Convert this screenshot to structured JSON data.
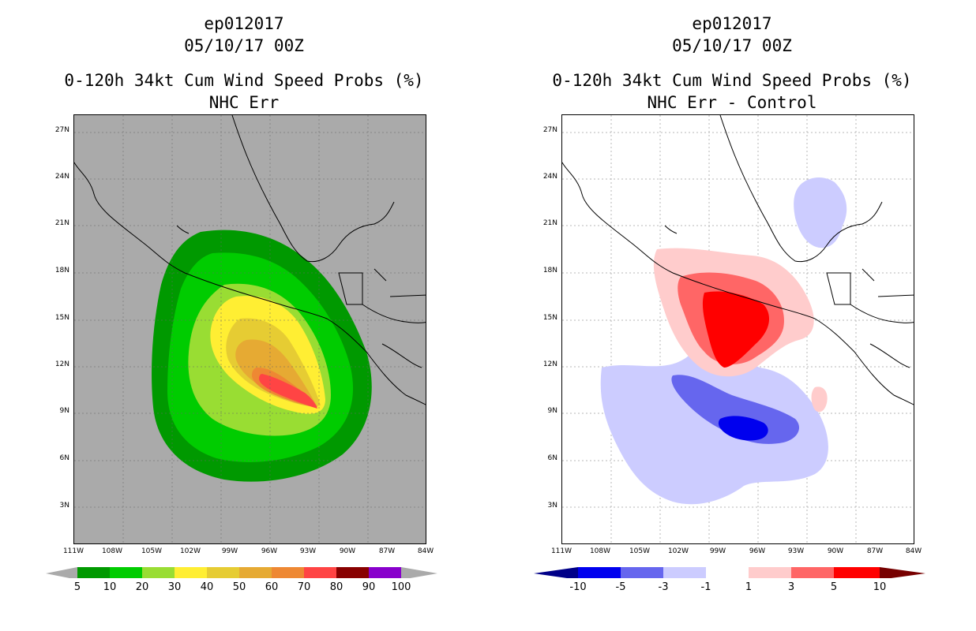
{
  "left_panel": {
    "title_line1": "ep012017",
    "title_line2": "05/10/17 00Z",
    "title_line3": "0-120h 34kt Cum Wind Speed Probs (%)",
    "title_line4": "NHC Err",
    "lat_labels": [
      "27N",
      "24N",
      "21N",
      "18N",
      "15N",
      "12N",
      "9N",
      "6N",
      "3N"
    ],
    "lon_labels": [
      "111W",
      "108W",
      "105W",
      "102W",
      "99W",
      "96W",
      "93W",
      "90W",
      "87W",
      "84W"
    ],
    "colorbar": {
      "labels": [
        "5",
        "10",
        "20",
        "30",
        "40",
        "50",
        "60",
        "70",
        "80",
        "90",
        "100"
      ],
      "colors": [
        "#009900",
        "#00cc00",
        "#99dd33",
        "#ffee33",
        "#e6cc33",
        "#e6aa33",
        "#ee8833",
        "#ff4444",
        "#aa0000",
        "#880000",
        "#8800cc",
        "#aaaaaa"
      ]
    }
  },
  "right_panel": {
    "title_line1": "ep012017",
    "title_line2": "05/10/17 00Z",
    "title_line3": "0-120h 34kt Cum Wind Speed Probs (%)",
    "title_line4": "NHC Err - Control",
    "lat_labels": [
      "27N",
      "24N",
      "21N",
      "18N",
      "15N",
      "12N",
      "9N",
      "6N",
      "3N"
    ],
    "lon_labels": [
      "111W",
      "108W",
      "105W",
      "102W",
      "99W",
      "96W",
      "93W",
      "90W",
      "87W",
      "84W"
    ],
    "colorbar": {
      "labels": [
        "-10",
        "-5",
        "-3",
        "-1",
        "1",
        "3",
        "5",
        "10"
      ],
      "colors": [
        "#000088",
        "#0000ee",
        "#6666ee",
        "#ccccff",
        "#ffffff",
        "#ffcccc",
        "#ff6666",
        "#ff0000",
        "#770000"
      ]
    }
  }
}
